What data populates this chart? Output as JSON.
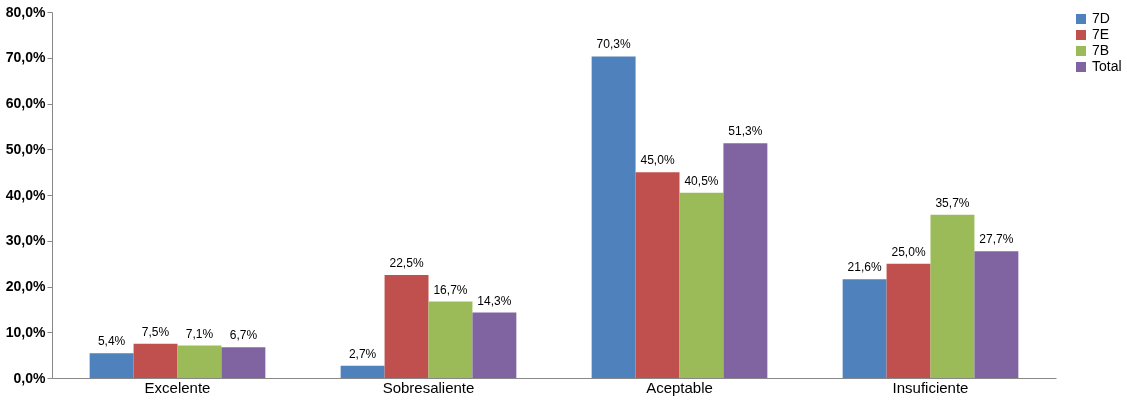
{
  "chart_data": {
    "type": "bar",
    "categories": [
      "Excelente",
      "Sobresaliente",
      "Aceptable",
      "Insuficiente"
    ],
    "series": [
      {
        "name": "7D",
        "color": "#4f81bd",
        "values": [
          5.4,
          2.7,
          70.3,
          21.6
        ],
        "value_labels": [
          "5,4%",
          "2,7%",
          "70,3%",
          "21,6%"
        ]
      },
      {
        "name": "7E",
        "color": "#c0504d",
        "values": [
          7.5,
          22.5,
          45.0,
          25.0
        ],
        "value_labels": [
          "7,5%",
          "22,5%",
          "45,0%",
          "25,0%"
        ]
      },
      {
        "name": "7B",
        "color": "#9bbb59",
        "values": [
          7.1,
          16.7,
          40.5,
          35.7
        ],
        "value_labels": [
          "7,1%",
          "16,7%",
          "40,5%",
          "35,7%"
        ]
      },
      {
        "name": "Total",
        "color": "#8064a2",
        "values": [
          6.7,
          14.3,
          51.3,
          27.7
        ],
        "value_labels": [
          "6,7%",
          "14,3%",
          "51,3%",
          "27,7%"
        ]
      }
    ],
    "ylim": [
      0,
      80
    ],
    "yticks": [
      {
        "value": 0,
        "label": "0,0%"
      },
      {
        "value": 10,
        "label": "10,0%"
      },
      {
        "value": 20,
        "label": "20,0%"
      },
      {
        "value": 30,
        "label": "30,0%"
      },
      {
        "value": 40,
        "label": "40,0%"
      },
      {
        "value": 50,
        "label": "50,0%"
      },
      {
        "value": 60,
        "label": "60,0%"
      },
      {
        "value": 70,
        "label": "70,0%"
      },
      {
        "value": 80,
        "label": "80,0%"
      }
    ],
    "grid": false,
    "legend": "right"
  }
}
